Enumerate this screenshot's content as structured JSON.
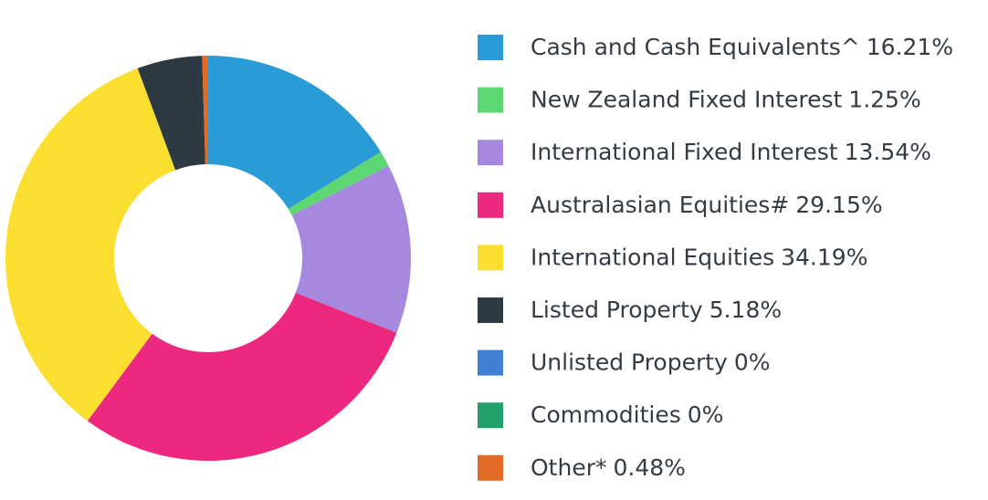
{
  "chart_data": {
    "type": "donut",
    "categories": [
      "Cash and Cash Equivalents^",
      "New Zealand Fixed Interest",
      "International Fixed Interest",
      "Australasian Equities#",
      "International Equities",
      "Listed Property",
      "Unlisted Property",
      "Commodities",
      "Other*"
    ],
    "values": [
      16.21,
      1.25,
      13.54,
      29.15,
      34.19,
      5.18,
      0,
      0,
      0.48
    ],
    "value_labels": [
      "16.21%",
      "1.25%",
      "13.54%",
      "29.15%",
      "34.19%",
      "5.18%",
      "0%",
      "0%",
      "0.48%"
    ],
    "colors": [
      "#2a9bd5",
      "#5dd674",
      "#a689de",
      "#ec297e",
      "#fbdf30",
      "#2e3a43",
      "#3f80d4",
      "#22a06a",
      "#e26a26"
    ]
  }
}
